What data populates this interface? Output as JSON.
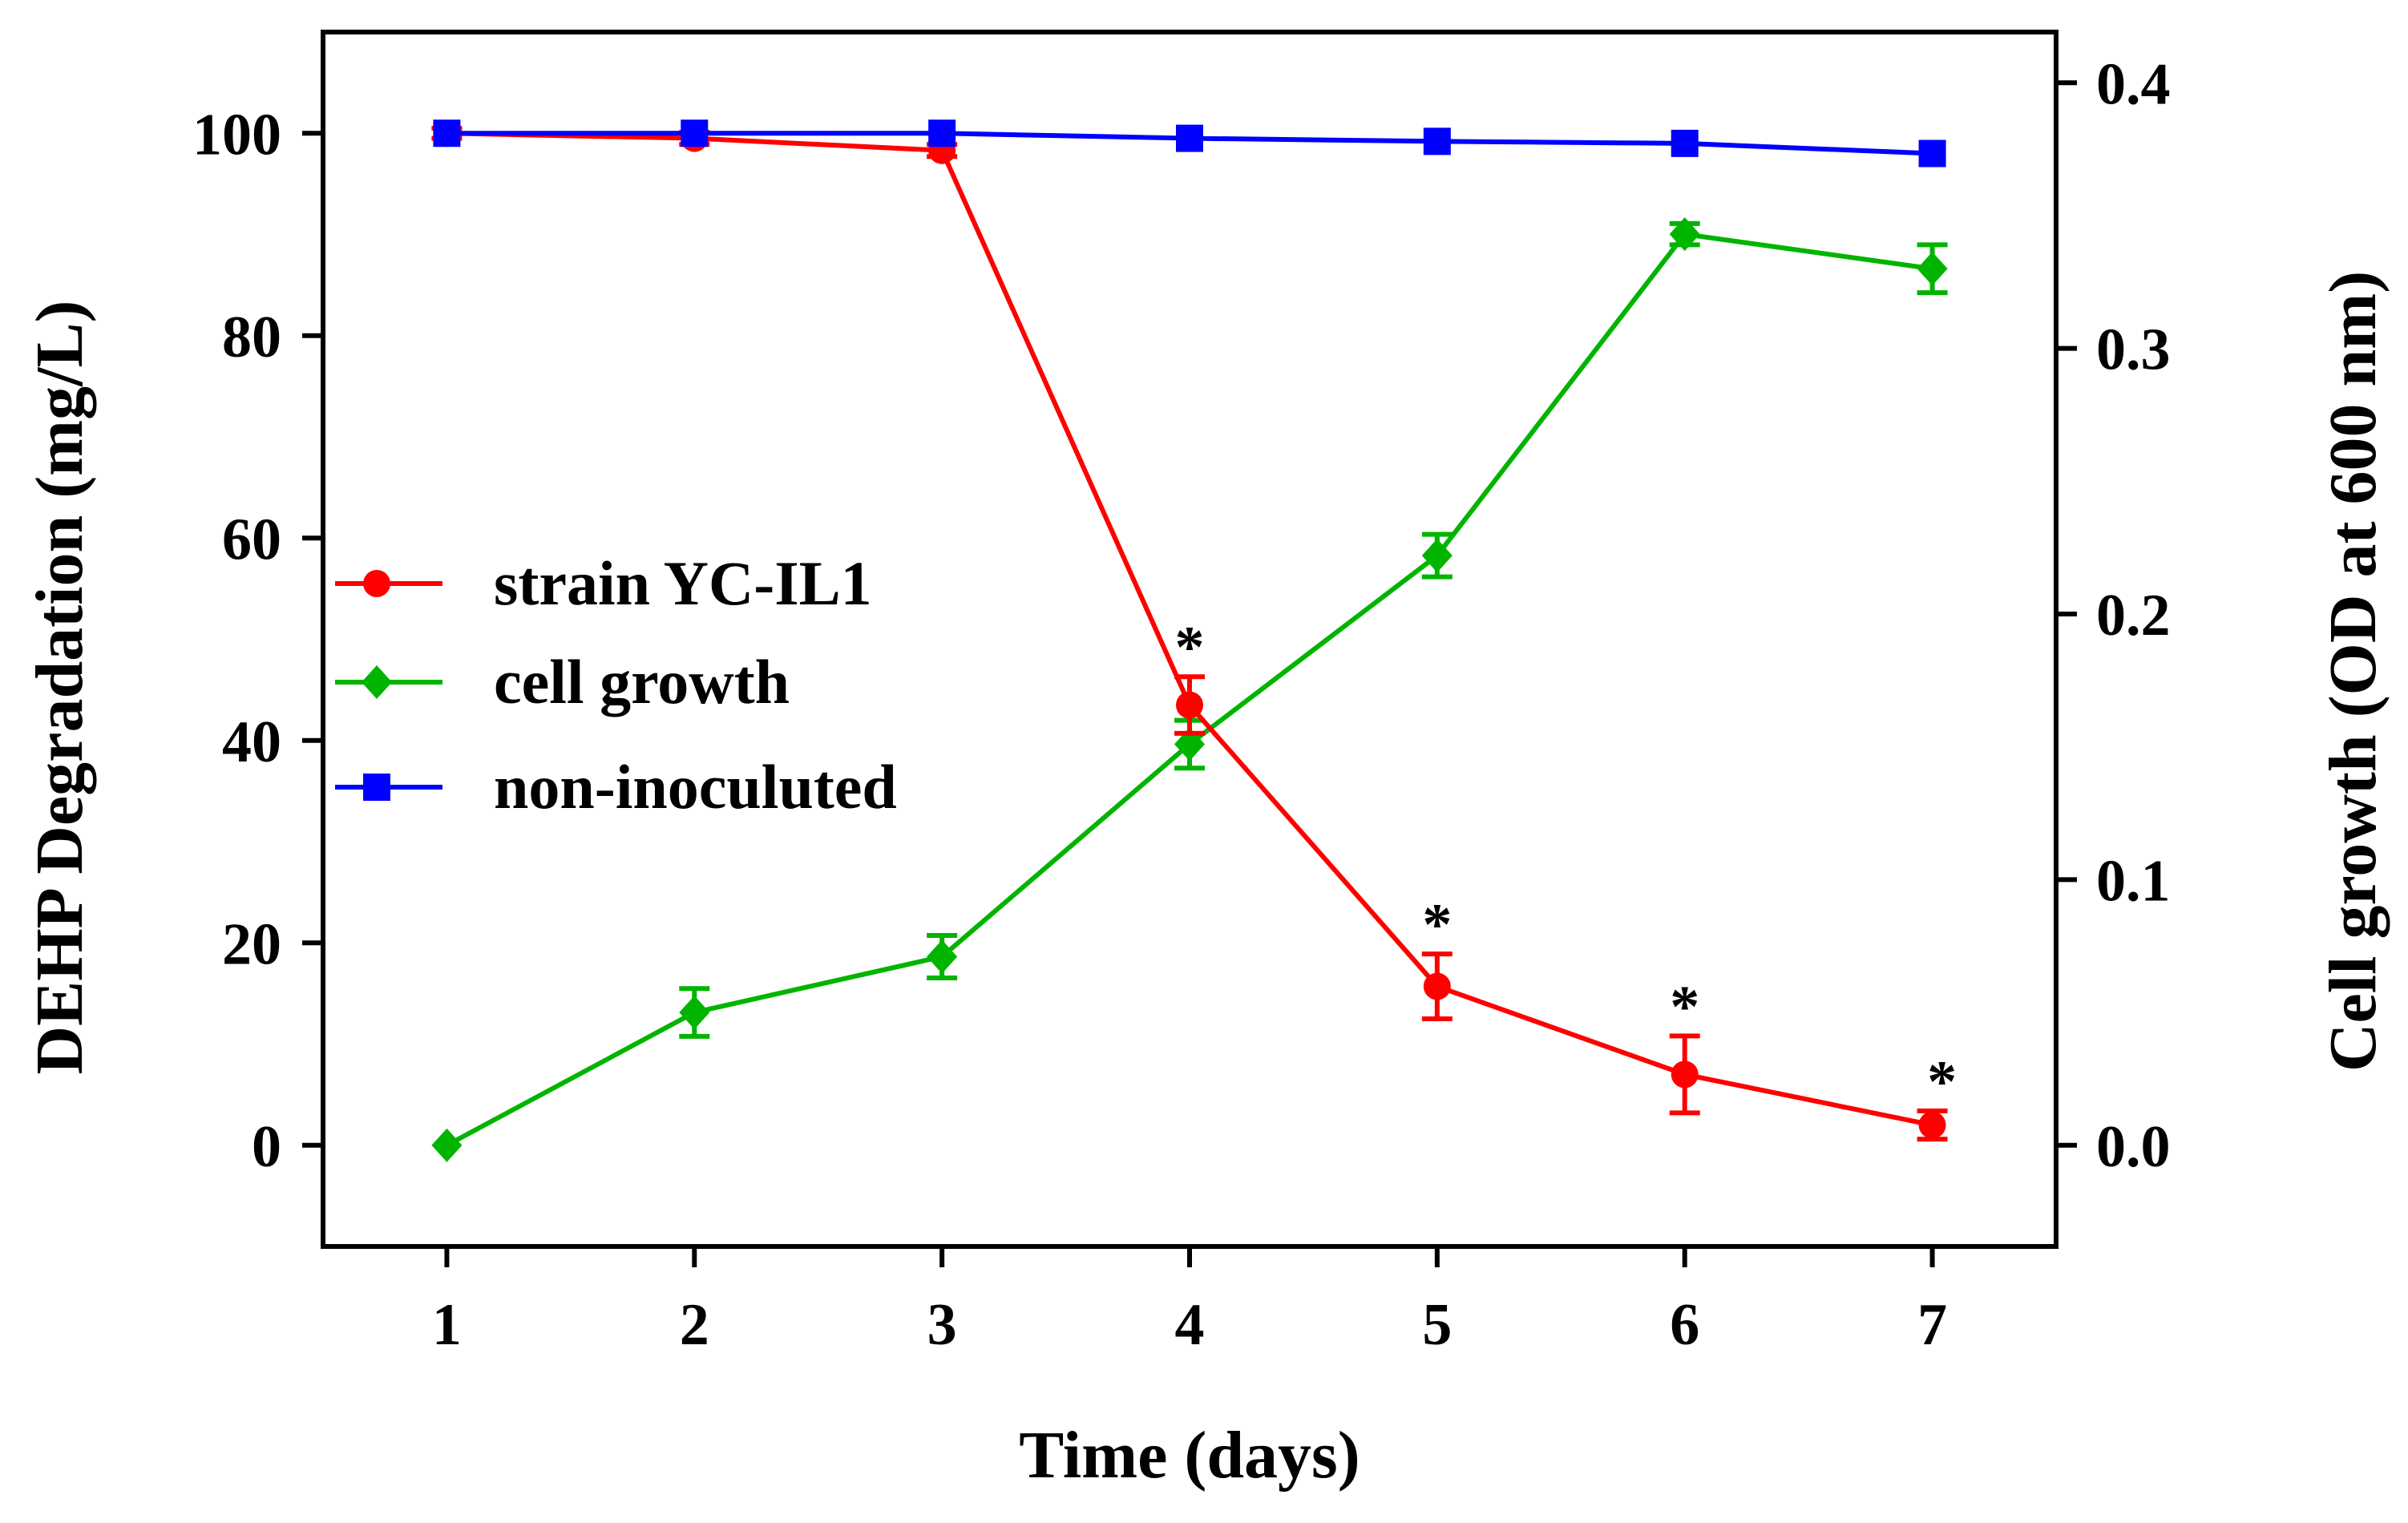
{
  "chart_data": {
    "type": "line",
    "xlabel": "Time (days)",
    "ylabel_left": "DEHP Degradation (mg/L)",
    "ylabel_right": "Cell growth (OD at 600 nm)",
    "x": [
      1,
      2,
      3,
      4,
      5,
      6,
      7
    ],
    "xlim": [
      0.5,
      7.5
    ],
    "ylim_left": [
      -10,
      110
    ],
    "ylim_right": [
      -0.0381,
      0.4191
    ],
    "x_ticks": [
      "1",
      "2",
      "3",
      "4",
      "5",
      "6",
      "7"
    ],
    "y_ticks_left": [
      "0",
      "20",
      "40",
      "60",
      "80",
      "100"
    ],
    "y_ticks_right": [
      "0.0",
      "0.1",
      "0.2",
      "0.3",
      "0.4"
    ],
    "legend_position": "center-left",
    "grid": false,
    "series": [
      {
        "name": "strain YC-IL1",
        "axis": "left",
        "color": "#ff0000",
        "marker": "circle",
        "values": [
          100,
          99.5,
          98.3,
          43.5,
          15.7,
          7.0,
          2.0
        ],
        "errors": [
          0.5,
          0.6,
          0.6,
          2.8,
          3.2,
          3.8,
          1.4
        ],
        "annotations": [
          "",
          "",
          "",
          "*",
          "*",
          "*",
          "*"
        ]
      },
      {
        "name": "cell growth",
        "axis": "right",
        "color": "#00b400",
        "marker": "diamond",
        "values": [
          0.0,
          0.05,
          0.071,
          0.151,
          0.222,
          0.343,
          0.33
        ],
        "errors": [
          0.0,
          0.009,
          0.008,
          0.009,
          0.008,
          0.004,
          0.009
        ]
      },
      {
        "name": "non-inoculuted",
        "axis": "left",
        "color": "#0000ff",
        "marker": "square",
        "values": [
          100,
          100,
          100,
          99.5,
          99.2,
          99.0,
          98.0
        ],
        "errors": [
          0,
          0,
          0,
          0,
          0,
          0,
          0
        ]
      }
    ]
  }
}
